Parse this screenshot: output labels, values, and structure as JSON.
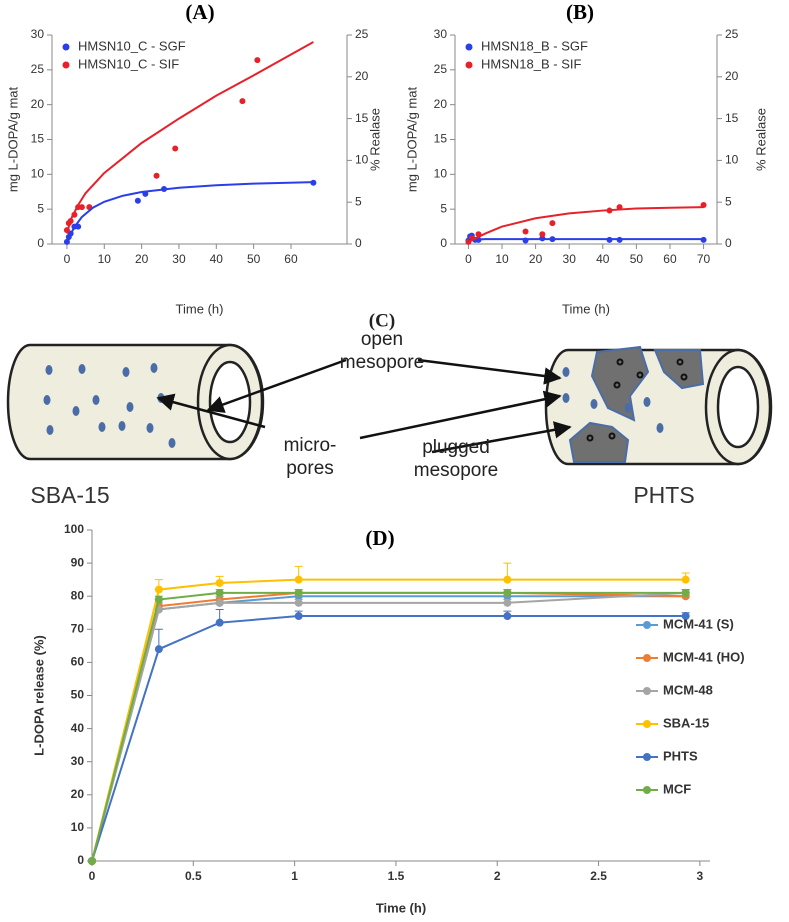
{
  "chart_data": [
    {
      "type": "scatter",
      "title": "(A)",
      "xlabel": "Time (h)",
      "ylabel": "mg L-DOPA/g mat",
      "y2label": "% Realase",
      "xlim": [
        -4,
        75
      ],
      "xticks": [
        0,
        10,
        20,
        30,
        40,
        50,
        60
      ],
      "ylim": [
        0,
        30
      ],
      "yticks": [
        0,
        5,
        10,
        15,
        20,
        25,
        30
      ],
      "y2lim": [
        0,
        25
      ],
      "y2ticks": [
        0,
        5,
        10,
        15,
        20,
        25
      ],
      "legend": "upper left",
      "grid": false,
      "series": [
        {
          "name": "HMSN10_C - SGF",
          "color": "#2a3fe8",
          "style": "points",
          "x": [
            0,
            0.5,
            1,
            2,
            3,
            19,
            21,
            26,
            66
          ],
          "values": [
            0.3,
            1,
            1.5,
            2.5,
            2.5,
            6.2,
            7.2,
            7.9,
            8.8
          ]
        },
        {
          "name": "HMSN10_C - SIF",
          "color": "#e8202a",
          "style": "points",
          "x": [
            0,
            0.5,
            1,
            2,
            3,
            4,
            6,
            24,
            29,
            47,
            51
          ],
          "values": [
            2,
            3,
            3.3,
            4.2,
            5.3,
            5.3,
            5.3,
            9.8,
            13.7,
            20.5,
            26.4
          ]
        },
        {
          "color": "#2a3fe8",
          "style": "line",
          "x": [
            0,
            1,
            2,
            4,
            7,
            10,
            15,
            20,
            30,
            40,
            50,
            66
          ],
          "values": [
            0,
            1.39,
            2.43,
            3.88,
            5.22,
            6.06,
            6.93,
            7.46,
            8.08,
            8.43,
            8.66,
            8.89
          ]
        },
        {
          "color": "#e8202a",
          "style": "line",
          "x": [
            0,
            1,
            3,
            5,
            10,
            20,
            30,
            40,
            50,
            66
          ],
          "values": [
            1.5,
            3.5,
            5.6,
            7.3,
            10.2,
            14.5,
            18,
            21.3,
            24.2,
            29
          ]
        }
      ]
    },
    {
      "type": "scatter",
      "title": "(B)",
      "xlabel": "Time (h)",
      "ylabel": "mg L-DOPA/g mat",
      "y2label": "% Realase",
      "xlim": [
        -4,
        74
      ],
      "xticks": [
        0,
        10,
        20,
        30,
        40,
        50,
        60,
        70
      ],
      "ylim": [
        0,
        30
      ],
      "yticks": [
        0,
        5,
        10,
        15,
        20,
        25,
        30
      ],
      "y2lim": [
        0,
        25
      ],
      "y2ticks": [
        0,
        5,
        10,
        15,
        20,
        25
      ],
      "legend": "upper left",
      "grid": false,
      "series": [
        {
          "name": "HMSN18_B - SGF",
          "color": "#2a3fe8",
          "style": "points",
          "x": [
            0,
            0.5,
            1,
            2,
            3,
            17,
            22,
            25,
            42,
            45,
            70
          ],
          "values": [
            0.5,
            1.1,
            1.2,
            0.6,
            0.6,
            0.5,
            0.8,
            0.7,
            0.6,
            0.6,
            0.6
          ]
        },
        {
          "name": "HMSN18_B - SIF",
          "color": "#e8202a",
          "style": "points",
          "x": [
            0,
            1,
            3,
            17,
            22,
            25,
            42,
            45,
            70
          ],
          "values": [
            0.3,
            0.8,
            1.4,
            1.8,
            1.4,
            3,
            4.8,
            5.3,
            5.6
          ]
        },
        {
          "color": "#2a3fe8",
          "style": "line",
          "x": [
            0,
            5,
            20,
            40,
            70
          ],
          "values": [
            0.6,
            0.7,
            0.7,
            0.7,
            0.7
          ]
        },
        {
          "color": "#e8202a",
          "style": "line",
          "x": [
            0,
            5,
            10,
            20,
            30,
            40,
            50,
            60,
            70
          ],
          "values": [
            0.3,
            1.5,
            2.5,
            3.7,
            4.4,
            4.8,
            5.1,
            5.2,
            5.3
          ]
        }
      ]
    },
    {
      "type": "line",
      "title": "(D)",
      "xlabel": "Time (h)",
      "ylabel": "L-DOPA release (%)",
      "xlim": [
        0,
        3.05
      ],
      "xticks": [
        0,
        0.5,
        1,
        1.5,
        2,
        2.5,
        3
      ],
      "ylim": [
        0,
        100
      ],
      "yticks": [
        0,
        10,
        20,
        30,
        40,
        50,
        60,
        70,
        80,
        90,
        100
      ],
      "legend": "right",
      "grid": false,
      "series": [
        {
          "name": "MCM-41 (S)",
          "color": "#5b9bd5",
          "x": [
            0,
            0.33,
            0.63,
            1.02,
            2.05,
            2.93
          ],
          "values": [
            0,
            76,
            78,
            80,
            80,
            80
          ],
          "errors": [
            0,
            2,
            2,
            1,
            1,
            1
          ]
        },
        {
          "name": "MCM-41 (HO)",
          "color": "#ed7d31",
          "x": [
            0,
            0.33,
            0.63,
            1.02,
            2.05,
            2.93
          ],
          "values": [
            0,
            77,
            79,
            81,
            81,
            80
          ],
          "errors": [
            0,
            2,
            2,
            1,
            1,
            2
          ]
        },
        {
          "name": "MCM-48",
          "color": "#a5a5a5",
          "x": [
            0,
            0.33,
            0.63,
            1.02,
            2.05,
            2.93
          ],
          "values": [
            0,
            76,
            78,
            78,
            78,
            81
          ],
          "errors": [
            0,
            2,
            2,
            1,
            1,
            1
          ]
        },
        {
          "name": "SBA-15",
          "color": "#ffc000",
          "x": [
            0,
            0.33,
            0.63,
            1.02,
            2.05,
            2.93
          ],
          "values": [
            0,
            82,
            84,
            85,
            85,
            85
          ],
          "errors": [
            0,
            3,
            2,
            4,
            5,
            2
          ]
        },
        {
          "name": "PHTS",
          "color": "#4472c4",
          "x": [
            0,
            0.33,
            0.63,
            1.02,
            2.05,
            2.93
          ],
          "values": [
            0,
            64,
            72,
            74,
            74,
            74
          ],
          "errors": [
            0,
            6,
            4,
            1.5,
            1.5,
            1
          ]
        },
        {
          "name": "MCF",
          "color": "#70ad47",
          "x": [
            0,
            0.33,
            0.63,
            1.02,
            2.05,
            2.93
          ],
          "values": [
            0,
            79,
            81,
            81,
            81,
            81
          ],
          "errors": [
            0,
            1,
            1,
            1,
            1,
            1
          ]
        }
      ]
    }
  ],
  "diagram": {
    "title": "(C)",
    "labels": [
      [
        "open",
        "mesopore"
      ],
      [
        "micro-",
        "pores"
      ],
      [
        "plugged",
        "mesopore"
      ]
    ],
    "materials": [
      "SBA-15",
      "PHTS"
    ]
  }
}
